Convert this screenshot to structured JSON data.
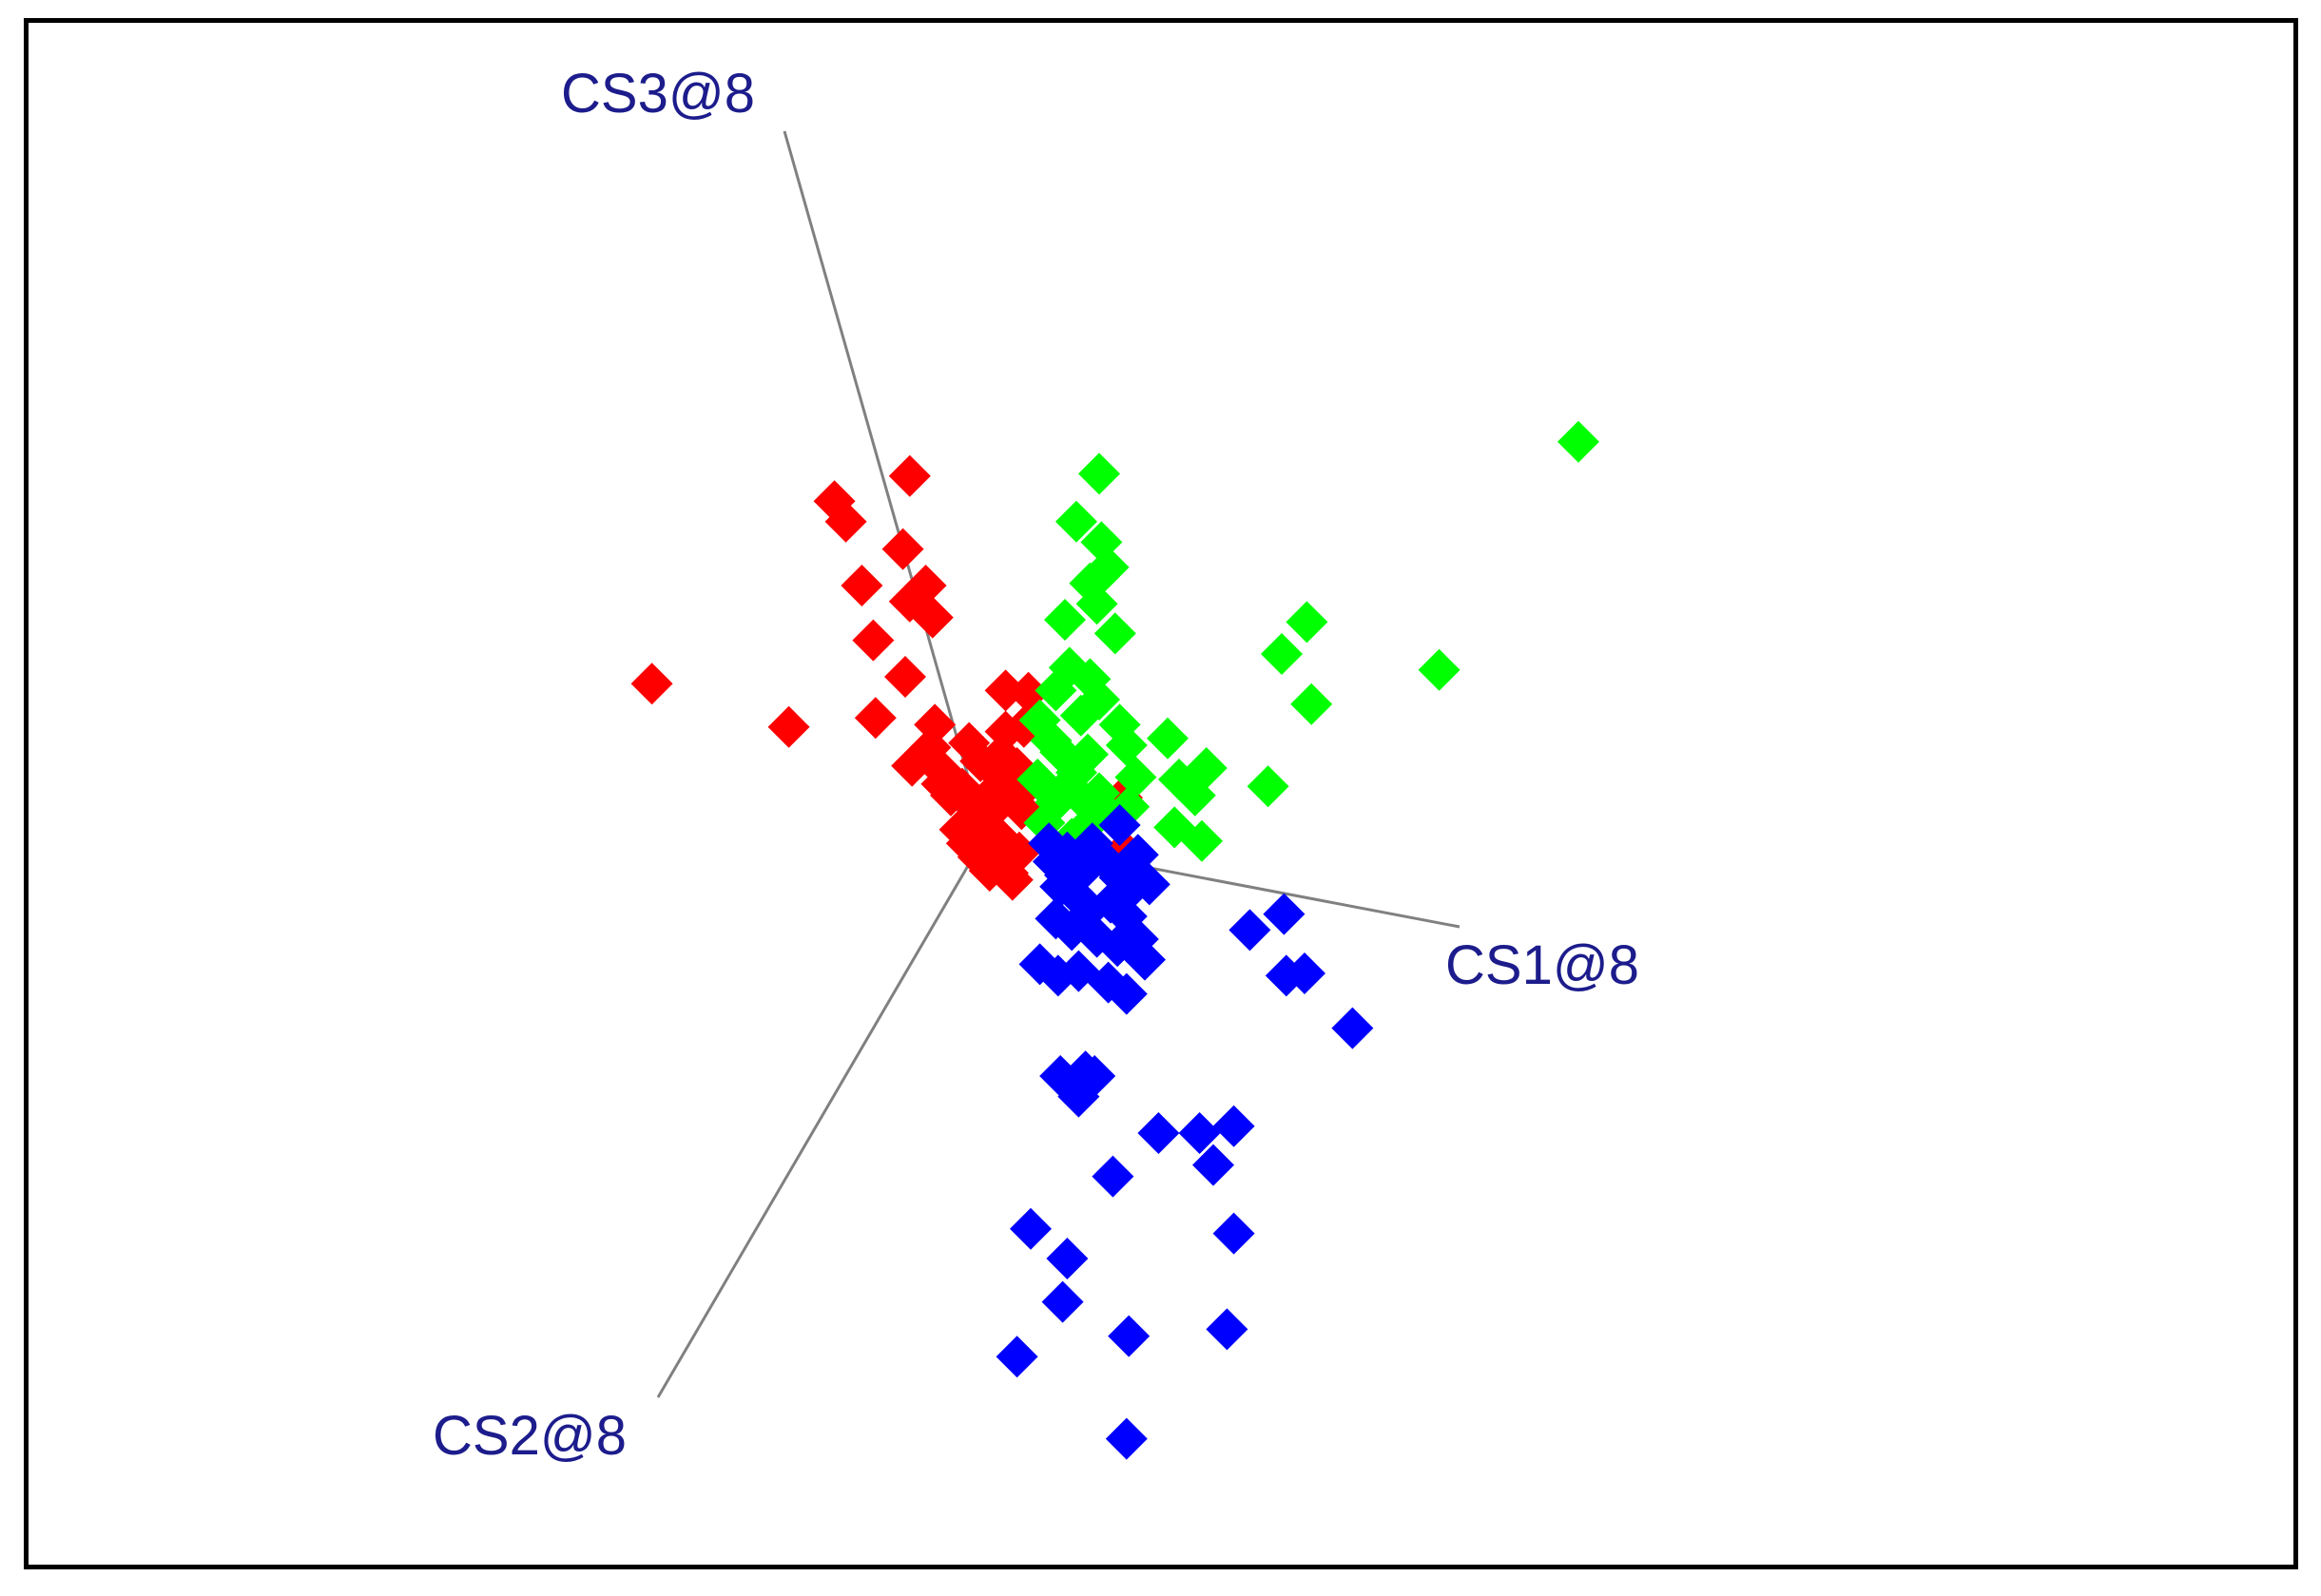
{
  "chart_data": {
    "type": "scatter",
    "projection": "3d",
    "axes": [
      {
        "label": "CS1@8"
      },
      {
        "label": "CS2@8"
      },
      {
        "label": "CS3@8"
      }
    ],
    "grid": false,
    "legend": "none",
    "marker": "diamond",
    "series": [
      {
        "color": "#ff0000",
        "points": [
          [
            -14.6,
            6.7
          ],
          [
            -8.6,
            4.8
          ],
          [
            -5.4,
            11.0
          ],
          [
            -6.1,
            13.8
          ],
          [
            -6.6,
            14.7
          ],
          [
            -4.9,
            8.6
          ],
          [
            -4.8,
            5.2
          ],
          [
            -3.3,
            15.8
          ],
          [
            -3.6,
            12.6
          ],
          [
            -3.3,
            10.3
          ],
          [
            -3.5,
            7.0
          ],
          [
            -3.2,
            3.1
          ],
          [
            -2.2,
            4.9
          ],
          [
            -1.9,
            2.3
          ],
          [
            -1.5,
            1.8
          ],
          [
            -1.1,
            0.3
          ],
          [
            -0.4,
            1.2
          ],
          [
            -2.6,
            11.0
          ],
          [
            -2.3,
            9.6
          ],
          [
            -1.8,
            2.8
          ],
          [
            -0.2,
            3.3
          ],
          [
            -0.7,
            4.1
          ],
          [
            -1.0,
            2.1
          ],
          [
            0.0,
            0.0
          ],
          [
            -0.3,
            -0.9
          ],
          [
            -0.5,
            1.5
          ],
          [
            0.2,
            1.0
          ],
          [
            0.6,
            2.2
          ],
          [
            0.4,
            2.9
          ],
          [
            0.6,
            -1.1
          ],
          [
            0.8,
            -1.3
          ],
          [
            1.0,
            -1.6
          ],
          [
            1.2,
            -1.9
          ],
          [
            1.3,
            1.7
          ],
          [
            1.1,
            2.3
          ],
          [
            1.4,
            3.0
          ],
          [
            1.5,
            -0.7
          ],
          [
            1.6,
            1.2
          ],
          [
            0.2,
            -1.5
          ],
          [
            0.9,
            4.6
          ],
          [
            0.7,
            3.6
          ],
          [
            6.0,
            1.7
          ],
          [
            6.1,
            -0.6
          ],
          [
            -0.8,
            -0.3
          ],
          [
            0.5,
            0.1
          ],
          [
            -2.4,
            3.9
          ],
          [
            1.9,
            6.3
          ],
          [
            0.9,
            6.4
          ],
          [
            1.7,
            4.8
          ]
        ]
      },
      {
        "color": "#00ff00",
        "points": [
          [
            5.0,
            15.9
          ],
          [
            4.0,
            13.8
          ],
          [
            5.1,
            12.9
          ],
          [
            3.5,
            9.5
          ],
          [
            5.7,
            8.9
          ],
          [
            5.9,
            4.9
          ],
          [
            2.4,
            5.1
          ],
          [
            3.3,
            3.7
          ],
          [
            4.0,
            2.8
          ],
          [
            4.5,
            3.6
          ],
          [
            5.0,
            1.9
          ],
          [
            5.3,
            1.1
          ],
          [
            4.7,
            0.7
          ],
          [
            3.8,
            -0.1
          ],
          [
            3.1,
            1.5
          ],
          [
            2.6,
            0.6
          ],
          [
            2.3,
            2.5
          ],
          [
            3.6,
            2.2
          ],
          [
            4.3,
            1.6
          ],
          [
            6.3,
            1.3
          ],
          [
            6.6,
            2.6
          ],
          [
            6.2,
            4.0
          ],
          [
            8.0,
            4.3
          ],
          [
            8.5,
            2.5
          ],
          [
            8.3,
            0.4
          ],
          [
            9.5,
            -0.2
          ],
          [
            9.2,
            1.8
          ],
          [
            9.7,
            3.0
          ],
          [
            12.4,
            2.2
          ],
          [
            14.3,
            5.8
          ],
          [
            13.0,
            8.0
          ],
          [
            14.1,
            9.4
          ],
          [
            19.9,
            7.3
          ],
          [
            26.0,
            17.3
          ],
          [
            3.1,
            6.4
          ],
          [
            3.7,
            7.4
          ],
          [
            4.6,
            6.9
          ],
          [
            5.0,
            6.0
          ],
          [
            4.2,
            5.3
          ],
          [
            2.9,
            4.2
          ],
          [
            4.9,
            10.2
          ],
          [
            5.0,
            11.4
          ],
          [
            5.4,
            11.8
          ],
          [
            4.6,
            11.1
          ]
        ]
      },
      {
        "color": "#0000ff",
        "points": [
          [
            3.0,
            -1.1
          ],
          [
            3.6,
            -0.7
          ],
          [
            4.3,
            -1.5
          ],
          [
            5.2,
            -1.0
          ],
          [
            5.9,
            -1.8
          ],
          [
            3.3,
            -2.2
          ],
          [
            4.0,
            -2.6
          ],
          [
            4.6,
            -3.2
          ],
          [
            5.5,
            -2.9
          ],
          [
            6.2,
            -3.5
          ],
          [
            3.1,
            -3.6
          ],
          [
            3.8,
            -4.1
          ],
          [
            4.9,
            -4.4
          ],
          [
            5.8,
            -4.8
          ],
          [
            6.7,
            -4.5
          ],
          [
            6.3,
            -2.4
          ],
          [
            6.7,
            -0.8
          ],
          [
            2.4,
            -5.6
          ],
          [
            3.2,
            -6.1
          ],
          [
            4.1,
            -5.9
          ],
          [
            5.4,
            -6.4
          ],
          [
            6.2,
            -6.9
          ],
          [
            3.3,
            -10.5
          ],
          [
            4.1,
            -11.4
          ],
          [
            4.4,
            -10.3
          ],
          [
            4.8,
            -10.5
          ],
          [
            7.6,
            -13.0
          ],
          [
            5.6,
            -14.9
          ],
          [
            3.6,
            -18.5
          ],
          [
            9.4,
            -13.0
          ],
          [
            10.0,
            -14.4
          ],
          [
            10.9,
            -12.7
          ],
          [
            10.9,
            -17.4
          ],
          [
            2.0,
            -17.2
          ],
          [
            3.4,
            -20.4
          ],
          [
            6.3,
            -21.9
          ],
          [
            1.4,
            -22.8
          ],
          [
            10.6,
            -21.6
          ],
          [
            6.2,
            -26.4
          ],
          [
            13.2,
            -6.1
          ],
          [
            11.6,
            -4.1
          ],
          [
            14.0,
            -6.0
          ],
          [
            16.1,
            -8.4
          ],
          [
            13.1,
            -3.4
          ],
          [
            5.9,
            0.5
          ],
          [
            4.7,
            -0.3
          ],
          [
            3.5,
            -1.7
          ],
          [
            2.8,
            -0.3
          ],
          [
            7.2,
            -2.1
          ],
          [
            7.0,
            -5.4
          ]
        ]
      }
    ]
  }
}
